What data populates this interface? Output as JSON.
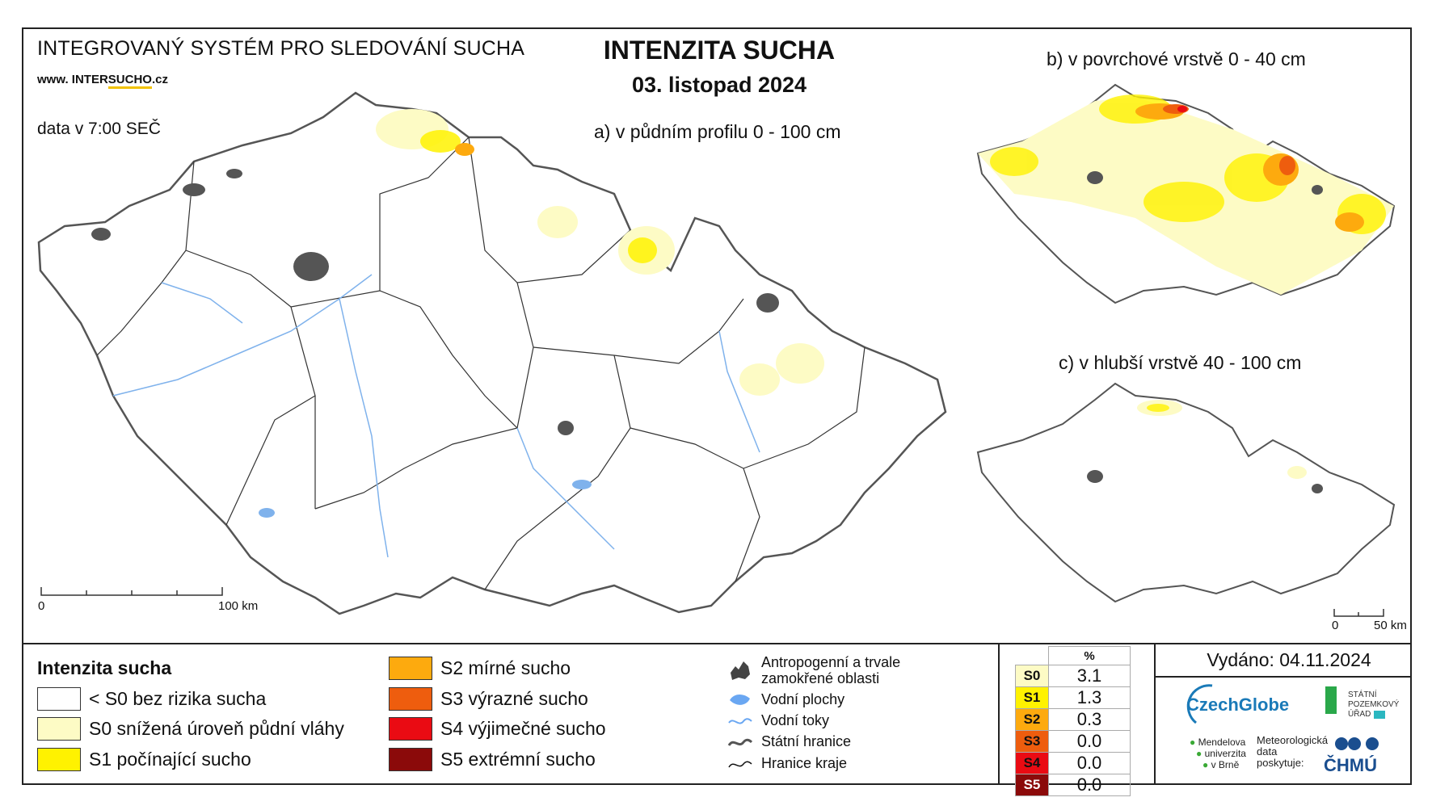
{
  "header": {
    "system_title": "INTEGROVANÝ SYSTÉM PRO SLEDOVÁNÍ SUCHA",
    "website_prefix": "www. INTER",
    "website_highlight": "SUCHO",
    "website_suffix": ".cz",
    "data_time": "data v 7:00 SEČ",
    "main_title": "INTENZITA SUCHA",
    "date": "03. listopad 2024"
  },
  "maps": {
    "a_label": "a) v půdním profilu 0 - 100 cm",
    "b_label": "b) v povrchové vrstvě 0 - 40 cm",
    "c_label": "c) v hlubší vrstvě 40 - 100 cm",
    "scale_main": {
      "start": "0",
      "end": "100 km"
    },
    "scale_small": {
      "start": "0",
      "end": "50 km"
    }
  },
  "legend": {
    "title": "Intenzita sucha",
    "classes": [
      {
        "label": "< S0 bez rizika sucha",
        "color": "#ffffff"
      },
      {
        "label": "S0 snížená úroveň půdní vláhy",
        "color": "#fdfbc5"
      },
      {
        "label": "S1 počínající sucho",
        "color": "#fff200"
      },
      {
        "label": "S2 mírné sucho",
        "color": "#fdaa0e"
      },
      {
        "label": "S3 výrazné sucho",
        "color": "#ee5d0e"
      },
      {
        "label": "S4 výjimečné sucho",
        "color": "#ea0b13"
      },
      {
        "label": "S5 extrémní sucho",
        "color": "#8b0a0a"
      }
    ],
    "symbols": [
      {
        "label_1": "Antropogenní a trvale",
        "label_2": "zamokřené oblasti",
        "icon": "urban-area-icon"
      },
      {
        "label_1": "Vodní plochy",
        "icon": "water-body-icon"
      },
      {
        "label_1": "Vodní toky",
        "icon": "river-icon"
      },
      {
        "label_1": "Státní hranice",
        "icon": "state-border-icon"
      },
      {
        "label_1": "Hranice kraje",
        "icon": "region-border-icon"
      }
    ]
  },
  "stats": {
    "header": "%",
    "rows": [
      {
        "key": "S0",
        "value": "3.1",
        "color": "#fdfbc5"
      },
      {
        "key": "S1",
        "value": "1.3",
        "color": "#fff200"
      },
      {
        "key": "S2",
        "value": "0.3",
        "color": "#fdaa0e"
      },
      {
        "key": "S3",
        "value": "0.0",
        "color": "#ee5d0e"
      },
      {
        "key": "S4",
        "value": "0.0",
        "color": "#ea0b13"
      },
      {
        "key": "S5",
        "value": "0.0",
        "color": "#8b0a0a"
      }
    ]
  },
  "issued": "Vydáno: 04.11.2024",
  "logos": {
    "czechglobe": "CzechGlobe",
    "spu_1": "STÁTNÍ",
    "spu_2": "POZEMKOVÝ",
    "spu_3": "ÚŘAD",
    "mendel_1": "Mendelova",
    "mendel_2": "univerzita",
    "mendel_3": "v Brně",
    "met_1": "Meteorologická",
    "met_2": "data",
    "met_3": "poskytuje:",
    "chmu": "ČHMÚ"
  }
}
